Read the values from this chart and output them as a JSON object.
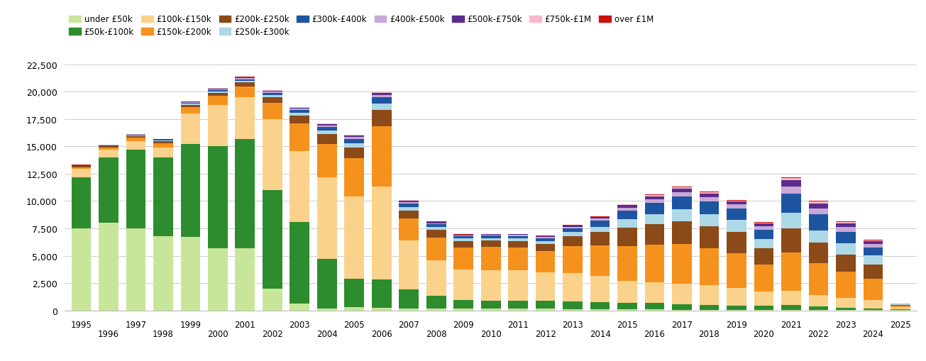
{
  "years": [
    1995,
    1996,
    1997,
    1998,
    1999,
    2000,
    2001,
    2002,
    2003,
    2004,
    2005,
    2006,
    2007,
    2008,
    2009,
    2010,
    2011,
    2012,
    2013,
    2014,
    2015,
    2016,
    2017,
    2018,
    2019,
    2020,
    2021,
    2022,
    2023,
    2024,
    2025
  ],
  "categories": [
    "under £50k",
    "£50k-£100k",
    "£100k-£150k",
    "£150k-£200k",
    "£200k-£250k",
    "£250k-£300k",
    "£300k-£400k",
    "£400k-£500k",
    "£500k-£750k",
    "£750k-£1M",
    "over £1M"
  ],
  "colors": [
    "#c8e69a",
    "#2d8c2d",
    "#fad28c",
    "#f5921e",
    "#8b4a18",
    "#add8e6",
    "#1e55a0",
    "#c9a8d8",
    "#5c2d8c",
    "#f9b8c8",
    "#cc1111"
  ],
  "data": {
    "under £50k": [
      7500,
      8000,
      7500,
      6800,
      6700,
      5700,
      5700,
      2000,
      600,
      200,
      300,
      250,
      200,
      150,
      150,
      150,
      150,
      150,
      100,
      100,
      80,
      80,
      70,
      60,
      60,
      50,
      50,
      40,
      30,
      20,
      30
    ],
    "£50k-£100k": [
      4700,
      6000,
      7200,
      7200,
      8500,
      9300,
      10000,
      9000,
      7500,
      4500,
      2600,
      2600,
      1700,
      1200,
      800,
      750,
      700,
      700,
      700,
      650,
      600,
      600,
      500,
      450,
      400,
      350,
      450,
      350,
      200,
      150,
      50
    ],
    "£100k-£150k": [
      750,
      700,
      800,
      900,
      2800,
      3800,
      3800,
      6500,
      6500,
      7500,
      7500,
      8500,
      4500,
      3200,
      2800,
      2800,
      2800,
      2600,
      2600,
      2400,
      2000,
      1900,
      1900,
      1800,
      1600,
      1300,
      1300,
      1000,
      900,
      750,
      200
    ],
    "£150k-£200k": [
      150,
      200,
      300,
      400,
      600,
      800,
      1000,
      1500,
      2500,
      3000,
      3500,
      5500,
      2000,
      2100,
      2000,
      2100,
      2100,
      2000,
      2500,
      2800,
      3200,
      3400,
      3600,
      3400,
      3200,
      2500,
      3500,
      2900,
      2400,
      2000,
      150
    ],
    "£200k-£250k": [
      80,
      100,
      150,
      150,
      200,
      300,
      350,
      500,
      700,
      900,
      1000,
      1500,
      700,
      700,
      600,
      600,
      600,
      650,
      900,
      1200,
      1700,
      1900,
      2100,
      2000,
      1900,
      1500,
      2200,
      1900,
      1600,
      1300,
      80
    ],
    "£250k-£300k": [
      40,
      50,
      60,
      70,
      100,
      130,
      150,
      200,
      280,
      350,
      400,
      600,
      350,
      280,
      220,
      220,
      230,
      250,
      380,
      500,
      750,
      950,
      1100,
      1100,
      1100,
      850,
      1400,
      1100,
      1000,
      800,
      40
    ],
    "£300k-£400k": [
      40,
      50,
      60,
      70,
      100,
      130,
      150,
      200,
      250,
      320,
      400,
      550,
      350,
      250,
      200,
      200,
      220,
      250,
      350,
      550,
      800,
      1000,
      1150,
      1150,
      1050,
      850,
      1800,
      1500,
      1050,
      750,
      40
    ],
    "£400k-£500k": [
      20,
      25,
      35,
      40,
      60,
      80,
      100,
      120,
      120,
      160,
      160,
      200,
      130,
      100,
      80,
      80,
      90,
      100,
      120,
      180,
      280,
      360,
      420,
      420,
      370,
      300,
      650,
      550,
      420,
      300,
      20
    ],
    "£500k-£750k": [
      15,
      20,
      25,
      30,
      40,
      55,
      70,
      90,
      100,
      110,
      130,
      160,
      110,
      85,
      65,
      65,
      70,
      75,
      95,
      130,
      200,
      260,
      310,
      310,
      280,
      240,
      560,
      450,
      370,
      250,
      12
    ],
    "£750k-£1M": [
      8,
      10,
      12,
      14,
      18,
      22,
      28,
      35,
      40,
      48,
      52,
      65,
      45,
      36,
      28,
      28,
      30,
      32,
      42,
      55,
      78,
      90,
      110,
      110,
      100,
      90,
      210,
      165,
      140,
      95,
      5
    ],
    "over £1M": [
      4,
      6,
      8,
      8,
      10,
      12,
      14,
      16,
      20,
      22,
      24,
      30,
      20,
      16,
      14,
      14,
      16,
      16,
      20,
      25,
      34,
      42,
      48,
      50,
      44,
      38,
      70,
      60,
      52,
      42,
      5
    ]
  },
  "ylim": [
    0,
    22500
  ],
  "yticks": [
    0,
    2500,
    5000,
    7500,
    10000,
    12500,
    15000,
    17500,
    20000,
    22500
  ],
  "background_color": "#ffffff",
  "grid_color": "#cccccc"
}
